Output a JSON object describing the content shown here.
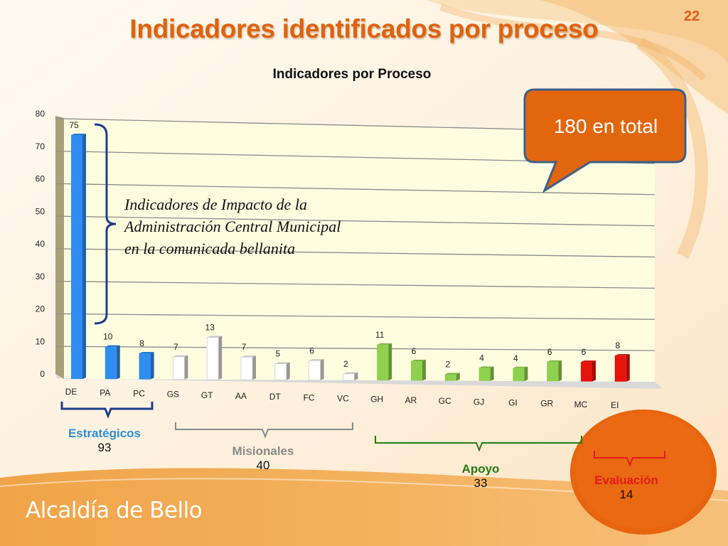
{
  "slide": {
    "number": "22",
    "title": "Indicadores identificados por proceso",
    "footer_logo": "Alcaldía de Bello"
  },
  "callout": {
    "text": "180 en total"
  },
  "annotation": {
    "lines": [
      "Indicadores de Impacto de la",
      "Administración Central Municipal",
      "en la comunicada bellanita"
    ]
  },
  "groups": [
    {
      "name": "Estratégicos",
      "total": "93",
      "color": "#2e8fd6"
    },
    {
      "name": "Misionales",
      "total": "40",
      "color": "#8a8a8a"
    },
    {
      "name": "Apoyo",
      "total": "33",
      "color": "#2a7a12"
    },
    {
      "name": "Evaluación",
      "total": "14",
      "color": "#e31b1b"
    }
  ],
  "chart_data": {
    "type": "bar",
    "title": "Indicadores por Proceso",
    "categories": [
      "DE",
      "PA",
      "PC",
      "GS",
      "GT",
      "AA",
      "DT",
      "FC",
      "VC",
      "GH",
      "AR",
      "GC",
      "GJ",
      "GI",
      "GR",
      "MC",
      "EI"
    ],
    "values": [
      75,
      10,
      8,
      7,
      13,
      7,
      5,
      6,
      2,
      11,
      6,
      2,
      4,
      4,
      6,
      6,
      8
    ],
    "bar_groups": [
      "Estratégicos",
      "Estratégicos",
      "Estratégicos",
      "Misionales",
      "Misionales",
      "Misionales",
      "Misionales",
      "Misionales",
      "Misionales",
      "Apoyo",
      "Apoyo",
      "Apoyo",
      "Apoyo",
      "Apoyo",
      "Apoyo",
      "Evaluación",
      "Evaluación"
    ],
    "bar_colors": {
      "Estratégicos": "#2f8cf0",
      "Misionales": "#ffffff",
      "Apoyo": "#8fd14f",
      "Evaluación": "#e8120c"
    },
    "yticks": [
      "0",
      "10",
      "20",
      "30",
      "40",
      "50",
      "60",
      "70",
      "80"
    ],
    "ylim": [
      0,
      80
    ],
    "grid": true,
    "xlabel": "",
    "ylabel": ""
  }
}
